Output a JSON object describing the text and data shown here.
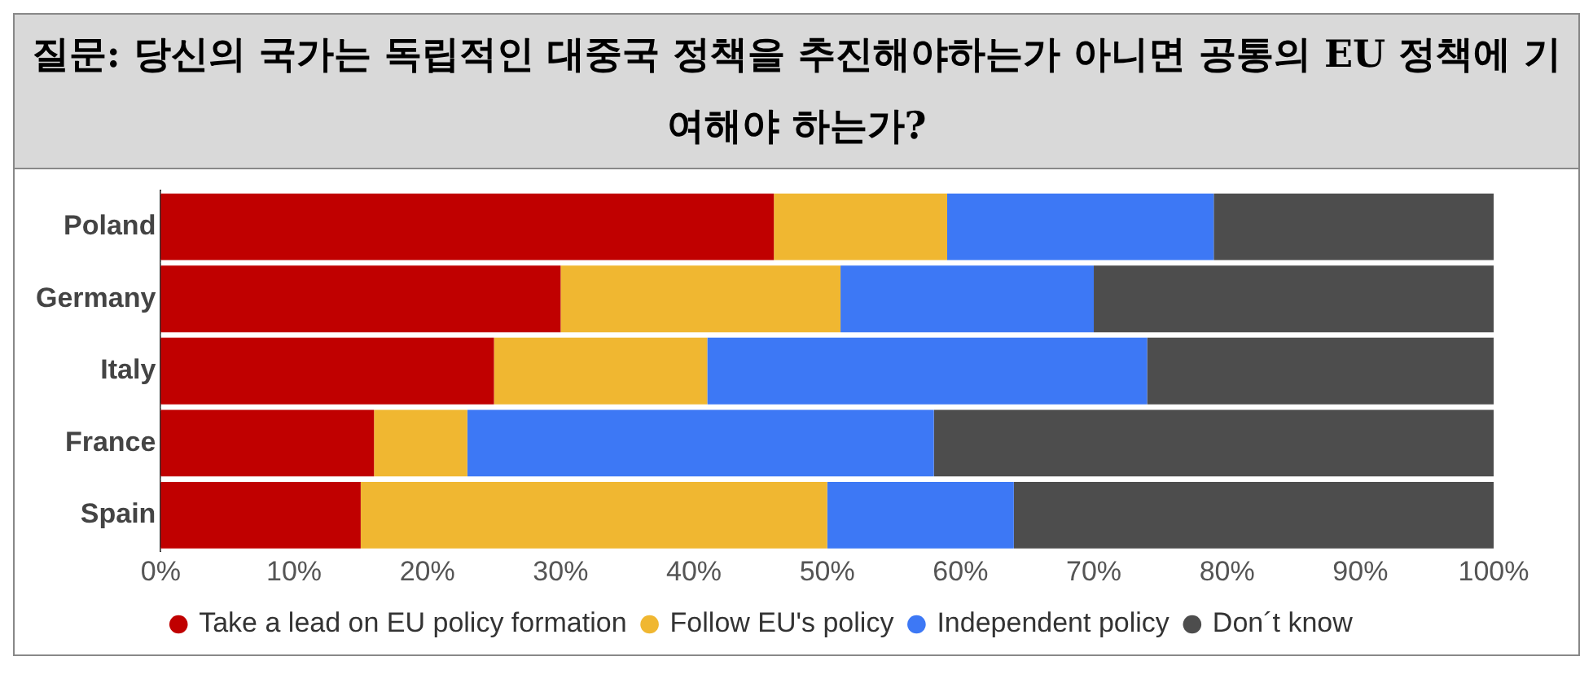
{
  "chart_data": {
    "type": "bar",
    "orientation": "horizontal",
    "stacked": true,
    "title": "질문: 당신의 국가는 독립적인 대중국 정책을 추진해야하는가 아니면 공통의 EU 정책에 기여해야 하는가?",
    "categories": [
      "Poland",
      "Germany",
      "Italy",
      "France",
      "Spain"
    ],
    "series": [
      {
        "name": "Take a lead on EU policy formation",
        "color": "#c00000",
        "values": [
          46,
          30,
          25,
          16,
          15
        ]
      },
      {
        "name": "Follow EU's policy",
        "color": "#f0b731",
        "values": [
          13,
          21,
          16,
          7,
          35
        ]
      },
      {
        "name": "Independent policy",
        "color": "#3d78f5",
        "values": [
          20,
          19,
          33,
          35,
          14
        ]
      },
      {
        "name": "Don´t know",
        "color": "#4d4d4d",
        "values": [
          21,
          30,
          26,
          42,
          36
        ]
      }
    ],
    "xlim": [
      0,
      100
    ],
    "xticks": [
      {
        "value": 0,
        "label": "0%"
      },
      {
        "value": 10,
        "label": "10%"
      },
      {
        "value": 20,
        "label": "20%"
      },
      {
        "value": 30,
        "label": "30%"
      },
      {
        "value": 40,
        "label": "40%"
      },
      {
        "value": 50,
        "label": "50%"
      },
      {
        "value": 60,
        "label": "60%"
      },
      {
        "value": 70,
        "label": "70%"
      },
      {
        "value": 80,
        "label": "80%"
      },
      {
        "value": 90,
        "label": "90%"
      },
      {
        "value": 100,
        "label": "100%"
      }
    ],
    "grid": false,
    "legend": "bottom",
    "marker": "circle"
  }
}
